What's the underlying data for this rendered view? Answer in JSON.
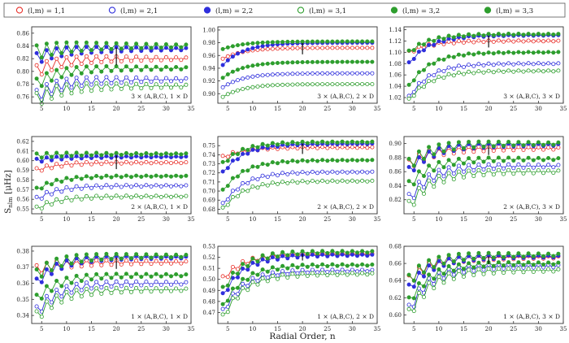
{
  "figure": {
    "ylabel": "S_nlm [μHz]",
    "ylabel_main": "S",
    "ylabel_sub": "nlm",
    "ylabel_unit": "[μHz]",
    "xlabel": "Radial Order, n",
    "colors": {
      "red": "#e8302a",
      "blue": "#2f2fdc",
      "green": "#2e9e2e",
      "axis": "#333333"
    }
  },
  "legend": [
    {
      "label": "(l,m) = 1,1",
      "color": "red",
      "filled": false
    },
    {
      "label": "(l,m) = 2,1",
      "color": "blue",
      "filled": false
    },
    {
      "label": "(l,m) = 2,2",
      "color": "blue",
      "filled": true
    },
    {
      "label": "(l,m) = 3,1",
      "color": "green",
      "filled": false
    },
    {
      "label": "(l,m) = 3,2",
      "color": "green",
      "filled": true
    },
    {
      "label": "(l,m) = 3,3",
      "color": "green",
      "filled": true
    }
  ],
  "chart_data": [
    {
      "type": "line",
      "panel": "row1-col1",
      "annotation": "3 × (A,B,C), 1 × D",
      "xlim": [
        3,
        35
      ],
      "ylim": [
        0.75,
        0.87
      ],
      "xticks": [
        "5",
        "10",
        "15",
        "20",
        "25",
        "30",
        "35"
      ],
      "yticks": [
        "0.76",
        "0.78",
        "0.80",
        "0.82",
        "0.84",
        "0.86"
      ],
      "x": [
        4,
        5,
        6,
        7,
        8,
        9,
        10,
        11,
        12,
        13,
        14,
        15,
        16,
        17,
        18,
        19,
        20,
        21,
        22,
        23,
        24,
        25,
        26,
        27,
        28,
        29,
        30,
        31,
        32,
        33,
        34
      ],
      "series": [
        {
          "name": "(l,m)=1,1",
          "endpoints": [
            0.8,
            0.82
          ]
        },
        {
          "name": "(l,m)=2,1",
          "endpoints": [
            0.76,
            0.787
          ]
        },
        {
          "name": "(l,m)=2,2",
          "endpoints": [
            0.82,
            0.835
          ]
        },
        {
          "name": "(l,m)=3,1",
          "endpoints": [
            0.755,
            0.777
          ]
        },
        {
          "name": "(l,m)=3,2",
          "endpoints": [
            0.78,
            0.805
          ]
        },
        {
          "name": "(l,m)=3,3",
          "endpoints": [
            0.83,
            0.84
          ]
        }
      ]
    },
    {
      "type": "line",
      "panel": "row1-col2",
      "annotation": "3 × (A,B,C), 2 × D",
      "xlim": [
        3,
        35
      ],
      "ylim": [
        0.885,
        1.005
      ],
      "xticks": [
        "5",
        "10",
        "15",
        "20",
        "25",
        "30",
        "35"
      ],
      "yticks": [
        "0.90",
        "0.92",
        "0.94",
        "0.96",
        "0.98",
        "1.00"
      ],
      "x": [
        4,
        5,
        6,
        7,
        8,
        9,
        10,
        11,
        12,
        13,
        14,
        15,
        16,
        17,
        18,
        19,
        20,
        21,
        22,
        23,
        24,
        25,
        26,
        27,
        28,
        29,
        30,
        31,
        32,
        33,
        34
      ],
      "series": [
        {
          "name": "(l,m)=1,1",
          "endpoints": [
            0.955,
            0.972
          ]
        },
        {
          "name": "(l,m)=2,1",
          "endpoints": [
            0.91,
            0.932
          ]
        },
        {
          "name": "(l,m)=2,2",
          "endpoints": [
            0.945,
            0.98
          ]
        },
        {
          "name": "(l,m)=3,1",
          "endpoints": [
            0.895,
            0.915
          ]
        },
        {
          "name": "(l,m)=3,2",
          "endpoints": [
            0.925,
            0.95
          ]
        },
        {
          "name": "(l,m)=3,3",
          "endpoints": [
            0.97,
            0.982
          ]
        }
      ]
    },
    {
      "type": "line",
      "panel": "row1-col3",
      "annotation": "3 × (A,B,C), 3 × D",
      "xlim": [
        3,
        35
      ],
      "ylim": [
        1.01,
        1.145
      ],
      "xticks": [
        "5",
        "10",
        "15",
        "20",
        "25",
        "30",
        "35"
      ],
      "yticks": [
        "1.02",
        "1.04",
        "1.06",
        "1.08",
        "1.10",
        "1.12",
        "1.14"
      ],
      "x": [
        4,
        5,
        6,
        7,
        8,
        9,
        10,
        11,
        12,
        13,
        14,
        15,
        16,
        17,
        18,
        19,
        20,
        21,
        22,
        23,
        24,
        25,
        26,
        27,
        28,
        29,
        30,
        31,
        32,
        33,
        34
      ],
      "series": [
        {
          "name": "(l,m)=1,1",
          "endpoints": [
            1.1,
            1.12
          ]
        },
        {
          "name": "(l,m)=2,1",
          "endpoints": [
            1.02,
            1.08
          ]
        },
        {
          "name": "(l,m)=2,2",
          "endpoints": [
            1.08,
            1.13
          ]
        },
        {
          "name": "(l,m)=3,1",
          "endpoints": [
            1.015,
            1.067
          ]
        },
        {
          "name": "(l,m)=3,2",
          "endpoints": [
            1.04,
            1.1
          ]
        },
        {
          "name": "(l,m)=3,3",
          "endpoints": [
            1.1,
            1.132
          ]
        }
      ]
    },
    {
      "type": "line",
      "panel": "row2-col1",
      "annotation": "2 × (A,B,C), 1 × D",
      "xlim": [
        3,
        35
      ],
      "ylim": [
        0.545,
        0.625
      ],
      "xticks": [
        "5",
        "10",
        "15",
        "20",
        "25",
        "30",
        "35"
      ],
      "yticks": [
        "0.55",
        "0.56",
        "0.57",
        "0.58",
        "0.59",
        "0.60",
        "0.61",
        "0.62"
      ],
      "x": [
        4,
        5,
        6,
        7,
        8,
        9,
        10,
        11,
        12,
        13,
        14,
        15,
        16,
        17,
        18,
        19,
        20,
        21,
        22,
        23,
        24,
        25,
        26,
        27,
        28,
        29,
        30,
        31,
        32,
        33,
        34
      ],
      "series": [
        {
          "name": "(l,m)=1,1",
          "endpoints": [
            0.59,
            0.598
          ]
        },
        {
          "name": "(l,m)=2,1",
          "endpoints": [
            0.56,
            0.574
          ]
        },
        {
          "name": "(l,m)=2,2",
          "endpoints": [
            0.6,
            0.604
          ]
        },
        {
          "name": "(l,m)=3,1",
          "endpoints": [
            0.55,
            0.563
          ]
        },
        {
          "name": "(l,m)=3,2",
          "endpoints": [
            0.57,
            0.584
          ]
        },
        {
          "name": "(l,m)=3,3",
          "endpoints": [
            0.605,
            0.607
          ]
        }
      ]
    },
    {
      "type": "line",
      "panel": "row2-col2",
      "annotation": "2 × (A,B,C), 2 × D",
      "xlim": [
        3,
        35
      ],
      "ylim": [
        0.675,
        0.76
      ],
      "xticks": [
        "5",
        "10",
        "15",
        "20",
        "25",
        "30",
        "35"
      ],
      "yticks": [
        "0.68",
        "0.69",
        "0.70",
        "0.71",
        "0.72",
        "0.73",
        "0.74",
        "0.75"
      ],
      "x": [
        4,
        5,
        6,
        7,
        8,
        9,
        10,
        11,
        12,
        13,
        14,
        15,
        16,
        17,
        18,
        19,
        20,
        21,
        22,
        23,
        24,
        25,
        26,
        27,
        28,
        29,
        30,
        31,
        32,
        33,
        34
      ],
      "series": [
        {
          "name": "(l,m)=1,1",
          "endpoints": [
            0.737,
            0.748
          ]
        },
        {
          "name": "(l,m)=2,1",
          "endpoints": [
            0.685,
            0.721
          ]
        },
        {
          "name": "(l,m)=2,2",
          "endpoints": [
            0.72,
            0.752
          ]
        },
        {
          "name": "(l,m)=3,1",
          "endpoints": [
            0.68,
            0.711
          ]
        },
        {
          "name": "(l,m)=3,2",
          "endpoints": [
            0.7,
            0.734
          ]
        },
        {
          "name": "(l,m)=3,3",
          "endpoints": [
            0.73,
            0.754
          ]
        }
      ]
    },
    {
      "type": "line",
      "panel": "row2-col3",
      "annotation": "2 × (A,B,C), 3 × D",
      "xlim": [
        3,
        35
      ],
      "ylim": [
        0.8,
        0.91
      ],
      "xticks": [
        "5",
        "10",
        "15",
        "20",
        "25",
        "30",
        "35"
      ],
      "yticks": [
        "0.82",
        "0.84",
        "0.86",
        "0.88",
        "0.90"
      ],
      "x": [
        4,
        5,
        6,
        7,
        8,
        9,
        10,
        11,
        12,
        13,
        14,
        15,
        16,
        17,
        18,
        19,
        20,
        21,
        22,
        23,
        24,
        25,
        26,
        27,
        28,
        29,
        30,
        31,
        32,
        33,
        34
      ],
      "series": [
        {
          "name": "(l,m)=1,1",
          "endpoints": [
            0.87,
            0.893
          ]
        },
        {
          "name": "(l,m)=2,1",
          "endpoints": [
            0.82,
            0.868
          ]
        },
        {
          "name": "(l,m)=2,2",
          "endpoints": [
            0.86,
            0.898
          ]
        },
        {
          "name": "(l,m)=3,1",
          "endpoints": [
            0.81,
            0.86
          ]
        },
        {
          "name": "(l,m)=3,2",
          "endpoints": [
            0.84,
            0.878
          ]
        },
        {
          "name": "(l,m)=3,3",
          "endpoints": [
            0.87,
            0.9
          ]
        }
      ]
    },
    {
      "type": "line",
      "panel": "row3-col1",
      "annotation": "1 × (A,B,C), 1 × D",
      "xlim": [
        3,
        35
      ],
      "ylim": [
        0.335,
        0.383
      ],
      "xticks": [
        "5",
        "10",
        "15",
        "20",
        "25",
        "30",
        "35"
      ],
      "yticks": [
        "0.34",
        "0.35",
        "0.36",
        "0.37",
        "0.38"
      ],
      "x": [
        4,
        5,
        6,
        7,
        8,
        9,
        10,
        11,
        12,
        13,
        14,
        15,
        16,
        17,
        18,
        19,
        20,
        21,
        22,
        23,
        24,
        25,
        26,
        27,
        28,
        29,
        30,
        31,
        32,
        33,
        34
      ],
      "series": [
        {
          "name": "(l,m)=1,1",
          "endpoints": [
            0.368,
            0.373
          ]
        },
        {
          "name": "(l,m)=2,1",
          "endpoints": [
            0.342,
            0.36
          ]
        },
        {
          "name": "(l,m)=2,2",
          "endpoints": [
            0.36,
            0.376
          ]
        },
        {
          "name": "(l,m)=3,1",
          "endpoints": [
            0.339,
            0.356
          ]
        },
        {
          "name": "(l,m)=3,2",
          "endpoints": [
            0.35,
            0.365
          ]
        },
        {
          "name": "(l,m)=3,3",
          "endpoints": [
            0.365,
            0.377
          ]
        }
      ]
    },
    {
      "type": "line",
      "panel": "row3-col2",
      "annotation": "1 × (A,B,C), 2 × D",
      "xlim": [
        3,
        35
      ],
      "ylim": [
        0.46,
        0.53
      ],
      "xticks": [
        "5",
        "10",
        "15",
        "20",
        "25",
        "30",
        "35"
      ],
      "yticks": [
        "0.47",
        "0.48",
        "0.49",
        "0.50",
        "0.51",
        "0.52",
        "0.53"
      ],
      "x": [
        4,
        5,
        6,
        7,
        8,
        9,
        10,
        11,
        12,
        13,
        14,
        15,
        16,
        17,
        18,
        19,
        20,
        21,
        22,
        23,
        24,
        25,
        26,
        27,
        28,
        29,
        30,
        31,
        32,
        33,
        34
      ],
      "series": [
        {
          "name": "(l,m)=1,1",
          "endpoints": [
            0.5,
            0.523
          ]
        },
        {
          "name": "(l,m)=2,1",
          "endpoints": [
            0.47,
            0.508
          ]
        },
        {
          "name": "(l,m)=2,2",
          "endpoints": [
            0.485,
            0.522
          ]
        },
        {
          "name": "(l,m)=3,1",
          "endpoints": [
            0.465,
            0.505
          ]
        },
        {
          "name": "(l,m)=3,2",
          "endpoints": [
            0.475,
            0.513
          ]
        },
        {
          "name": "(l,m)=3,3",
          "endpoints": [
            0.49,
            0.525
          ]
        }
      ]
    },
    {
      "type": "line",
      "panel": "row3-col3",
      "annotation": "1 × (A,B,C), 3 × D",
      "xlim": [
        3,
        35
      ],
      "ylim": [
        0.59,
        0.68
      ],
      "xticks": [
        "5",
        "10",
        "15",
        "20",
        "25",
        "30",
        "35"
      ],
      "yticks": [
        "0.60",
        "0.62",
        "0.64",
        "0.66",
        "0.68"
      ],
      "x": [
        4,
        5,
        6,
        7,
        8,
        9,
        10,
        11,
        12,
        13,
        14,
        15,
        16,
        17,
        18,
        19,
        20,
        21,
        22,
        23,
        24,
        25,
        26,
        27,
        28,
        29,
        30,
        31,
        32,
        33,
        34
      ],
      "series": [
        {
          "name": "(l,m)=1,1",
          "endpoints": [
            0.64,
            0.667
          ]
        },
        {
          "name": "(l,m)=2,1",
          "endpoints": [
            0.605,
            0.657
          ]
        },
        {
          "name": "(l,m)=2,2",
          "endpoints": [
            0.63,
            0.668
          ]
        },
        {
          "name": "(l,m)=3,1",
          "endpoints": [
            0.6,
            0.652
          ]
        },
        {
          "name": "(l,m)=3,2",
          "endpoints": [
            0.615,
            0.66
          ]
        },
        {
          "name": "(l,m)=3,3",
          "endpoints": [
            0.64,
            0.67
          ]
        }
      ]
    }
  ]
}
